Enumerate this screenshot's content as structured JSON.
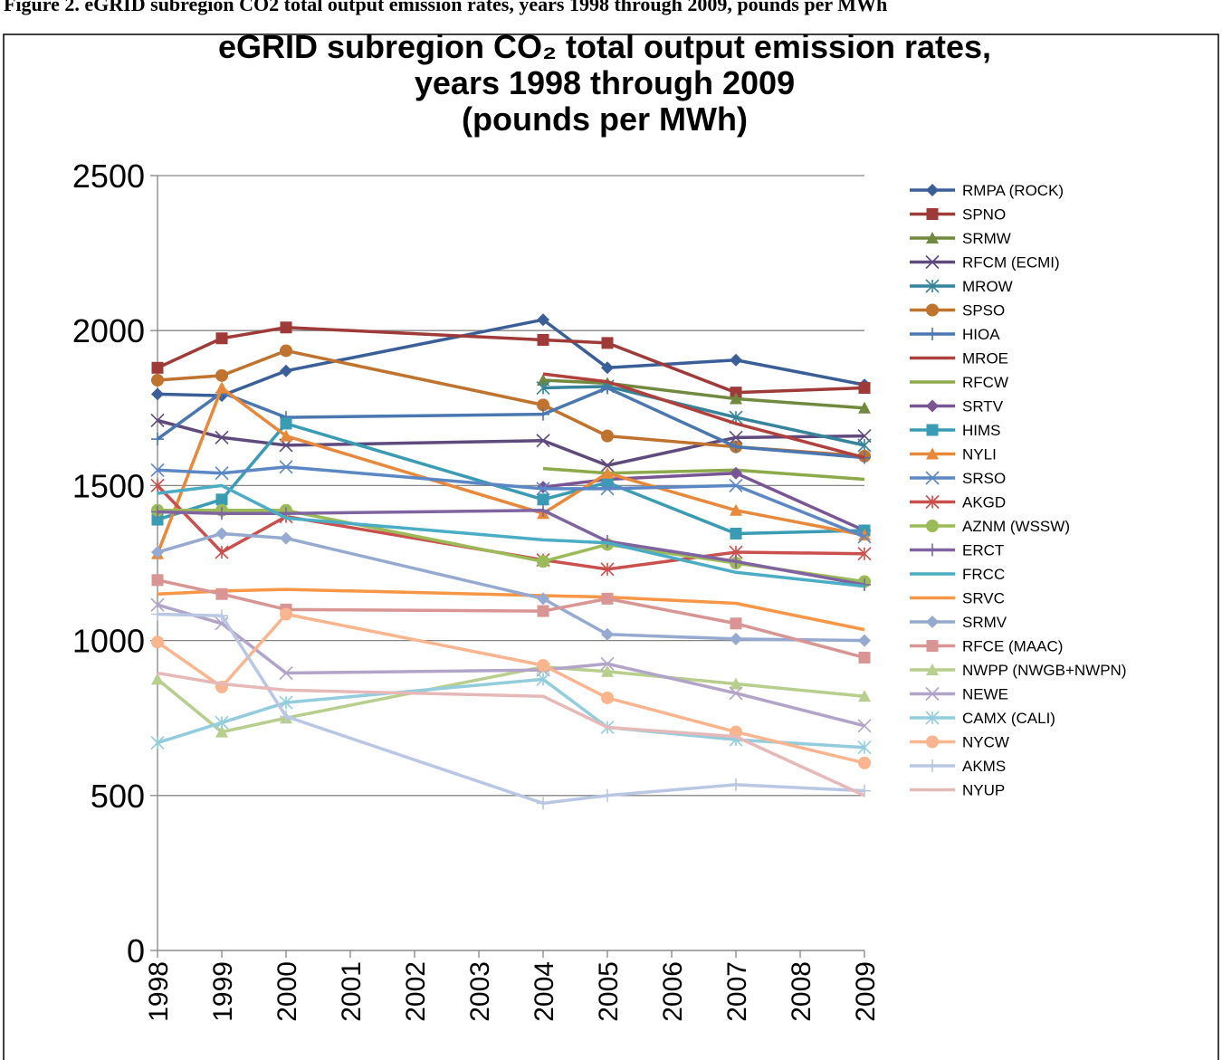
{
  "header": "Figure 2. eGRID subregion CO2 total output emission rates, years 1998 through 2009, pounds per MWh",
  "chart_data": {
    "type": "line",
    "title": [
      "eGRID subregion CO₂ total output emission rates,",
      "years 1998 through 2009",
      "(pounds per MWh)"
    ],
    "x": [
      1998,
      1999,
      2000,
      2004,
      2005,
      2007,
      2009
    ],
    "xlim": [
      1998,
      2009
    ],
    "xticks": [
      1998,
      1999,
      2000,
      2001,
      2002,
      2003,
      2004,
      2005,
      2006,
      2007,
      2008,
      2009
    ],
    "ylim": [
      0,
      2500
    ],
    "yticks": [
      0,
      500,
      1000,
      1500,
      2000,
      2500
    ],
    "grid": true,
    "legend": "right",
    "series": [
      {
        "name": "RMPA (ROCK)",
        "color": "#3A5F98",
        "marker": "diamond",
        "values": [
          1795,
          1790,
          1870,
          2035,
          1880,
          1905,
          1825
        ]
      },
      {
        "name": "SPNO",
        "color": "#9E3A38",
        "marker": "square",
        "values": [
          1880,
          1975,
          2010,
          1970,
          1960,
          1800,
          1815
        ]
      },
      {
        "name": "SRMW",
        "color": "#71893F",
        "marker": "triangle",
        "values": [
          null,
          null,
          null,
          1840,
          1830,
          1780,
          1750
        ]
      },
      {
        "name": "RFCM (ECMI)",
        "color": "#5E4A7C",
        "marker": "x",
        "values": [
          1710,
          1655,
          1630,
          1645,
          1565,
          1655,
          1660
        ]
      },
      {
        "name": "MROW",
        "color": "#35849B",
        "marker": "asterisk",
        "values": [
          null,
          null,
          null,
          1815,
          1820,
          1720,
          1630
        ]
      },
      {
        "name": "SPSO",
        "color": "#C0722F",
        "marker": "circle",
        "values": [
          1840,
          1855,
          1935,
          1760,
          1660,
          1625,
          1595
        ]
      },
      {
        "name": "HIOA",
        "color": "#4A77B0",
        "marker": "plus",
        "values": [
          1650,
          1800,
          1720,
          1730,
          1815,
          1625,
          1590
        ]
      },
      {
        "name": "MROE",
        "color": "#B0403C",
        "marker": "none",
        "values": [
          null,
          null,
          null,
          1860,
          1835,
          1700,
          1590
        ]
      },
      {
        "name": "RFCW",
        "color": "#8CAA4A",
        "marker": "none",
        "values": [
          null,
          null,
          null,
          1555,
          1540,
          1550,
          1520
        ]
      },
      {
        "name": "SRTV",
        "color": "#7A5595",
        "marker": "diamond",
        "values": [
          null,
          null,
          null,
          1495,
          1520,
          1540,
          1355
        ]
      },
      {
        "name": "HIMS",
        "color": "#3A9BB5",
        "marker": "square",
        "values": [
          1390,
          1455,
          1700,
          1455,
          1510,
          1345,
          1355
        ]
      },
      {
        "name": "NYLI",
        "color": "#E8883A",
        "marker": "triangle",
        "values": [
          1280,
          1815,
          1660,
          1410,
          1540,
          1420,
          1340
        ]
      },
      {
        "name": "SRSO",
        "color": "#5B87C5",
        "marker": "x",
        "values": [
          1550,
          1540,
          1560,
          1490,
          1490,
          1500,
          1335
        ]
      },
      {
        "name": "AKGD",
        "color": "#C9504D",
        "marker": "asterisk",
        "values": [
          1500,
          1285,
          1400,
          1260,
          1230,
          1285,
          1280
        ]
      },
      {
        "name": "AZNM (WSSW)",
        "color": "#9BBB59",
        "marker": "circle",
        "values": [
          1420,
          1420,
          1420,
          1255,
          1310,
          1250,
          1190
        ]
      },
      {
        "name": "ERCT",
        "color": "#8064A2",
        "marker": "plus",
        "values": [
          1415,
          1410,
          1410,
          1420,
          1320,
          1255,
          1180
        ]
      },
      {
        "name": "FRCC",
        "color": "#4BACC6",
        "marker": "none",
        "values": [
          1475,
          1500,
          1395,
          1325,
          1315,
          1220,
          1175
        ]
      },
      {
        "name": "SRVC",
        "color": "#F79646",
        "marker": "none",
        "values": [
          1150,
          1160,
          1165,
          1145,
          1140,
          1120,
          1035
        ]
      },
      {
        "name": "SRMV",
        "color": "#95A9D1",
        "marker": "diamond",
        "values": [
          1285,
          1345,
          1330,
          1135,
          1020,
          1005,
          1000
        ]
      },
      {
        "name": "RFCE (MAAC)",
        "color": "#D89594",
        "marker": "square",
        "values": [
          1195,
          1150,
          1100,
          1095,
          1135,
          1055,
          945
        ]
      },
      {
        "name": "NWPP (NWGB+NWPN)",
        "color": "#B7CE8D",
        "marker": "triangle",
        "values": [
          875,
          705,
          750,
          915,
          900,
          860,
          820
        ]
      },
      {
        "name": "NEWE",
        "color": "#B2A3C8",
        "marker": "x",
        "values": [
          1115,
          1055,
          895,
          905,
          925,
          830,
          725
        ]
      },
      {
        "name": "CAMX (CALI)",
        "color": "#93CDDD",
        "marker": "asterisk",
        "values": [
          670,
          735,
          800,
          875,
          720,
          680,
          655
        ]
      },
      {
        "name": "NYCW",
        "color": "#FAB58E",
        "marker": "circle",
        "values": [
          995,
          850,
          1085,
          920,
          815,
          705,
          605
        ]
      },
      {
        "name": "AKMS",
        "color": "#B9C7E4",
        "marker": "plus",
        "values": [
          1085,
          1080,
          755,
          475,
          500,
          535,
          515
        ]
      },
      {
        "name": "NYUP",
        "color": "#E6B9B8",
        "marker": "none",
        "values": [
          895,
          860,
          840,
          820,
          720,
          690,
          500
        ]
      }
    ]
  }
}
